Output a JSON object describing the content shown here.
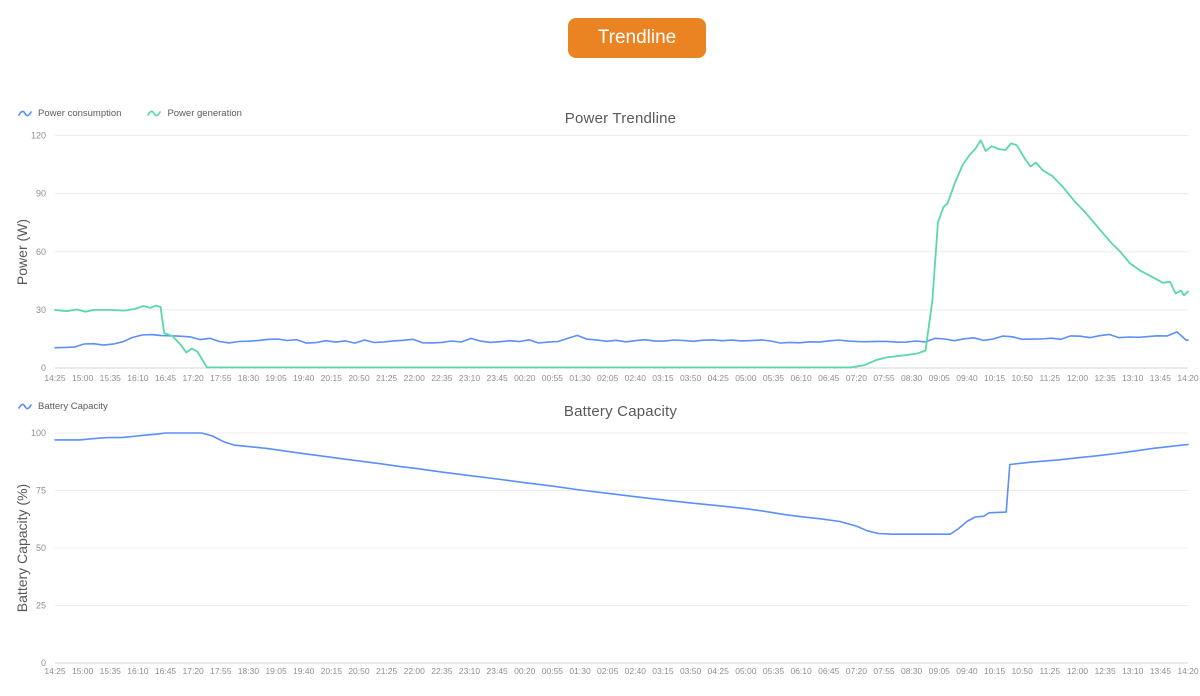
{
  "button": {
    "label": "Trendline",
    "color": "#EA8423"
  },
  "colors": {
    "consumption_blue": "#5B8FF9",
    "generation_green": "#5AD8A6",
    "grid": "#ECECEC",
    "axis_line": "#D4D4D4",
    "tick_text": "#8F8F8F",
    "title_text": "#595959"
  },
  "chart_data": [
    {
      "type": "line",
      "title": "Power Trendline",
      "ylabel": "Power (W)",
      "ylim": [
        0,
        120
      ],
      "yticks": [
        0,
        30,
        60,
        90,
        120
      ],
      "grid": true,
      "legend_position": "top-left",
      "x": [
        "14:25",
        "15:00",
        "15:35",
        "16:10",
        "16:45",
        "17:20",
        "17:55",
        "18:30",
        "19:05",
        "19:40",
        "20:15",
        "20:50",
        "21:25",
        "22:00",
        "22:35",
        "23:10",
        "23:45",
        "00:20",
        "00:55",
        "01:30",
        "02:05",
        "02:40",
        "03:15",
        "03:50",
        "04:25",
        "05:00",
        "05:35",
        "06:10",
        "06:45",
        "07:20",
        "07:55",
        "08:30",
        "09:05",
        "09:40",
        "10:15",
        "10:50",
        "11:25",
        "12:00",
        "12:35",
        "13:10",
        "13:45",
        "14:20"
      ],
      "series": [
        {
          "name": "Power consumption",
          "color": "#5B8FF9",
          "noise": 1.0,
          "points": [
            [
              0,
              10.5
            ],
            [
              0.5,
              11
            ],
            [
              1,
              12
            ],
            [
              1.5,
              12
            ],
            [
              2,
              12.5
            ],
            [
              2.5,
              14
            ],
            [
              3,
              16
            ],
            [
              3.5,
              17
            ],
            [
              4,
              17.5
            ],
            [
              4.5,
              16.5
            ],
            [
              5,
              16
            ],
            [
              5.5,
              15
            ],
            [
              6,
              14
            ],
            [
              7,
              13.5
            ],
            [
              8,
              14.5
            ],
            [
              9,
              13.5
            ],
            [
              10,
              14
            ],
            [
              11,
              13.5
            ],
            [
              12,
              14.5
            ],
            [
              13,
              14
            ],
            [
              14,
              13.5
            ],
            [
              15,
              14.5
            ],
            [
              16,
              13.5
            ],
            [
              17,
              14
            ],
            [
              18,
              13.5
            ],
            [
              19,
              16.5
            ],
            [
              19.4,
              14
            ],
            [
              20,
              14
            ],
            [
              21,
              13.5
            ],
            [
              22,
              14
            ],
            [
              23,
              13.5
            ],
            [
              24,
              14.5
            ],
            [
              25,
              13.5
            ],
            [
              26,
              14
            ],
            [
              27,
              13.5
            ],
            [
              28,
              13.5
            ],
            [
              29,
              14
            ],
            [
              30,
              13.5
            ],
            [
              31,
              14
            ],
            [
              32,
              14.5
            ],
            [
              33,
              14.5
            ],
            [
              34,
              15.5
            ],
            [
              35,
              15.5
            ],
            [
              36,
              16
            ],
            [
              37,
              15.5
            ],
            [
              38,
              16.5
            ],
            [
              39,
              16
            ],
            [
              39.8,
              17
            ],
            [
              40.3,
              17
            ],
            [
              40.6,
              19
            ],
            [
              40.8,
              15
            ],
            [
              41,
              14.5
            ]
          ]
        },
        {
          "name": "Power generation",
          "color": "#5AD8A6",
          "noise": 0,
          "points": [
            [
              0,
              30
            ],
            [
              0.4,
              29.3
            ],
            [
              0.8,
              30.2
            ],
            [
              1.1,
              29
            ],
            [
              1.4,
              30
            ],
            [
              2,
              30
            ],
            [
              2.5,
              29.6
            ],
            [
              2.9,
              30.5
            ],
            [
              3.2,
              32
            ],
            [
              3.45,
              31
            ],
            [
              3.65,
              32.2
            ],
            [
              3.82,
              31.5
            ],
            [
              3.95,
              18
            ],
            [
              4.25,
              16.5
            ],
            [
              4.55,
              12
            ],
            [
              4.75,
              8
            ],
            [
              4.95,
              10
            ],
            [
              5.15,
              8.5
            ],
            [
              5.5,
              0.3
            ],
            [
              28.8,
              0.3
            ],
            [
              29.3,
              1.5
            ],
            [
              29.7,
              4
            ],
            [
              30.1,
              5.5
            ],
            [
              30.7,
              6.5
            ],
            [
              31.2,
              7.5
            ],
            [
              31.5,
              9
            ],
            [
              31.75,
              35
            ],
            [
              31.95,
              75
            ],
            [
              32.15,
              83
            ],
            [
              32.3,
              85
            ],
            [
              32.55,
              95
            ],
            [
              32.85,
              105
            ],
            [
              33.1,
              110
            ],
            [
              33.3,
              113
            ],
            [
              33.5,
              117.5
            ],
            [
              33.68,
              112
            ],
            [
              33.9,
              114.5
            ],
            [
              34.15,
              113
            ],
            [
              34.4,
              112.5
            ],
            [
              34.6,
              116
            ],
            [
              34.8,
              115
            ],
            [
              35.1,
              108
            ],
            [
              35.3,
              104
            ],
            [
              35.5,
              106
            ],
            [
              35.75,
              102
            ],
            [
              36.1,
              99
            ],
            [
              36.5,
              93
            ],
            [
              36.9,
              86
            ],
            [
              37.3,
              80
            ],
            [
              37.6,
              75
            ],
            [
              37.9,
              70
            ],
            [
              38.2,
              65
            ],
            [
              38.55,
              60
            ],
            [
              38.9,
              54
            ],
            [
              39.3,
              50
            ],
            [
              39.7,
              47
            ],
            [
              40.1,
              44
            ],
            [
              40.35,
              44.5
            ],
            [
              40.55,
              38.5
            ],
            [
              40.75,
              40
            ],
            [
              40.85,
              37.5
            ],
            [
              41,
              39.5
            ]
          ]
        }
      ]
    },
    {
      "type": "line",
      "title": "Battery Capacity",
      "ylabel": "Battery Capacity (%)",
      "ylim": [
        0,
        100
      ],
      "yticks": [
        0,
        25,
        50,
        75,
        100
      ],
      "grid": true,
      "legend_position": "top-left",
      "x": [
        "14:25",
        "15:00",
        "15:35",
        "16:10",
        "16:45",
        "17:20",
        "17:55",
        "18:30",
        "19:05",
        "19:40",
        "20:15",
        "20:50",
        "21:25",
        "22:00",
        "22:35",
        "23:10",
        "23:45",
        "00:20",
        "00:55",
        "01:30",
        "02:05",
        "02:40",
        "03:15",
        "03:50",
        "04:25",
        "05:00",
        "05:35",
        "06:10",
        "06:45",
        "07:20",
        "07:55",
        "08:30",
        "09:05",
        "09:40",
        "10:15",
        "10:50",
        "11:25",
        "12:00",
        "12:35",
        "13:10",
        "13:45",
        "14:20"
      ],
      "series": [
        {
          "name": "Battery Capacity",
          "color": "#5B8FF9",
          "noise": 0,
          "points": [
            [
              0,
              97
            ],
            [
              0.9,
              97
            ],
            [
              1.3,
              97.5
            ],
            [
              1.9,
              98
            ],
            [
              2.4,
              98
            ],
            [
              2.8,
              98.5
            ],
            [
              3.2,
              99
            ],
            [
              3.7,
              99.5
            ],
            [
              4,
              100
            ],
            [
              5.3,
              100
            ],
            [
              5.7,
              98.7
            ],
            [
              6.1,
              96.2
            ],
            [
              6.5,
              94.7
            ],
            [
              7.1,
              94
            ],
            [
              7.7,
              93.2
            ],
            [
              8.3,
              92.2
            ],
            [
              9,
              91
            ],
            [
              9.7,
              89.9
            ],
            [
              10.4,
              88.8
            ],
            [
              11.1,
              87.7
            ],
            [
              11.8,
              86.6
            ],
            [
              12.5,
              85.4
            ],
            [
              13.1,
              84.5
            ],
            [
              14,
              83
            ],
            [
              15,
              81.5
            ],
            [
              16,
              80
            ],
            [
              17,
              78.4
            ],
            [
              18,
              76.9
            ],
            [
              19,
              75.2
            ],
            [
              20,
              73.8
            ],
            [
              21,
              72.3
            ],
            [
              22,
              70.9
            ],
            [
              23,
              69.6
            ],
            [
              24,
              68.4
            ],
            [
              25,
              67.1
            ],
            [
              25.7,
              65.9
            ],
            [
              26.4,
              64.5
            ],
            [
              27,
              63.6
            ],
            [
              27.7,
              62.7
            ],
            [
              28.4,
              61.5
            ],
            [
              29,
              59.5
            ],
            [
              29.4,
              57.5
            ],
            [
              29.8,
              56.3
            ],
            [
              30.3,
              56
            ],
            [
              32.4,
              56
            ],
            [
              32.7,
              58.5
            ],
            [
              33,
              61.5
            ],
            [
              33.3,
              63.5
            ],
            [
              33.6,
              63.8
            ],
            [
              33.8,
              65.3
            ],
            [
              34.42,
              65.6
            ],
            [
              34.55,
              86.3
            ],
            [
              34.9,
              86.8
            ],
            [
              35.3,
              87.3
            ],
            [
              35.8,
              87.8
            ],
            [
              36.3,
              88.3
            ],
            [
              37,
              89.2
            ],
            [
              37.7,
              90.1
            ],
            [
              38.4,
              91.1
            ],
            [
              39.1,
              92.2
            ],
            [
              39.8,
              93.4
            ],
            [
              40.4,
              94.2
            ],
            [
              41,
              95
            ]
          ]
        }
      ]
    }
  ]
}
